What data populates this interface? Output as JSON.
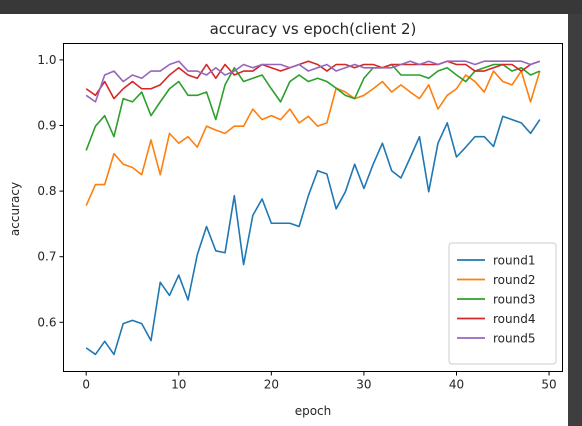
{
  "chart_data": {
    "type": "line",
    "title": "accuracy vs epoch(client 2)",
    "xlabel": "epoch",
    "ylabel": "accuracy",
    "xlim": [
      -2.45,
      51.45
    ],
    "ylim": [
      0.525,
      1.025
    ],
    "xticks": [
      0,
      10,
      20,
      30,
      40,
      50
    ],
    "yticks": [
      0.6,
      0.7,
      0.8,
      0.9,
      1.0
    ],
    "xtick_labels": [
      "0",
      "10",
      "20",
      "30",
      "40",
      "50"
    ],
    "ytick_labels": [
      "0.6",
      "0.7",
      "0.8",
      "0.9",
      "1.0"
    ],
    "grid": false,
    "legend_position": "lower-right",
    "x": [
      0,
      1,
      2,
      3,
      4,
      5,
      6,
      7,
      8,
      9,
      10,
      11,
      12,
      13,
      14,
      15,
      16,
      17,
      18,
      19,
      20,
      21,
      22,
      23,
      24,
      25,
      26,
      27,
      28,
      29,
      30,
      31,
      32,
      33,
      34,
      35,
      36,
      37,
      38,
      39,
      40,
      41,
      42,
      43,
      44,
      45,
      46,
      47,
      48,
      49
    ],
    "series": [
      {
        "name": "round1",
        "color": "#1f77b4",
        "values": [
          0.561,
          0.551,
          0.571,
          0.551,
          0.598,
          0.603,
          0.598,
          0.572,
          0.661,
          0.641,
          0.672,
          0.634,
          0.703,
          0.746,
          0.709,
          0.706,
          0.793,
          0.688,
          0.763,
          0.788,
          0.751,
          0.751,
          0.751,
          0.746,
          0.793,
          0.831,
          0.826,
          0.773,
          0.799,
          0.841,
          0.804,
          0.841,
          0.873,
          0.831,
          0.82,
          0.851,
          0.883,
          0.799,
          0.873,
          0.904,
          0.852,
          0.867,
          0.883,
          0.883,
          0.868,
          0.914,
          0.909,
          0.904,
          0.888,
          0.909
        ]
      },
      {
        "name": "round2",
        "color": "#ff7f0e",
        "values": [
          0.778,
          0.81,
          0.81,
          0.857,
          0.841,
          0.836,
          0.825,
          0.878,
          0.825,
          0.888,
          0.873,
          0.883,
          0.867,
          0.899,
          0.893,
          0.888,
          0.899,
          0.899,
          0.925,
          0.909,
          0.915,
          0.909,
          0.925,
          0.904,
          0.914,
          0.899,
          0.904,
          0.957,
          0.951,
          0.941,
          0.946,
          0.956,
          0.967,
          0.951,
          0.962,
          0.951,
          0.941,
          0.962,
          0.925,
          0.946,
          0.956,
          0.977,
          0.967,
          0.951,
          0.983,
          0.967,
          0.962,
          0.983,
          0.936,
          0.983
        ]
      },
      {
        "name": "round3",
        "color": "#2ca02c",
        "values": [
          0.862,
          0.899,
          0.915,
          0.883,
          0.941,
          0.936,
          0.951,
          0.915,
          0.936,
          0.956,
          0.967,
          0.946,
          0.946,
          0.951,
          0.909,
          0.962,
          0.988,
          0.967,
          0.972,
          0.977,
          0.956,
          0.936,
          0.967,
          0.977,
          0.967,
          0.972,
          0.967,
          0.957,
          0.946,
          0.941,
          0.972,
          0.988,
          0.988,
          0.993,
          0.977,
          0.977,
          0.977,
          0.972,
          0.983,
          0.988,
          0.977,
          0.967,
          0.983,
          0.988,
          0.993,
          0.993,
          0.983,
          0.988,
          0.977,
          0.983
        ]
      },
      {
        "name": "round4",
        "color": "#d62728",
        "values": [
          0.956,
          0.946,
          0.967,
          0.941,
          0.956,
          0.967,
          0.956,
          0.956,
          0.962,
          0.977,
          0.988,
          0.977,
          0.972,
          0.993,
          0.972,
          0.993,
          0.977,
          0.983,
          0.983,
          0.993,
          0.988,
          0.983,
          0.988,
          0.993,
          0.998,
          0.993,
          0.983,
          0.993,
          0.993,
          0.988,
          0.993,
          0.993,
          0.988,
          0.993,
          0.993,
          0.993,
          0.993,
          0.993,
          0.993,
          0.998,
          0.993,
          0.993,
          0.983,
          0.983,
          0.988,
          0.993,
          0.993,
          0.983,
          0.993,
          0.998
        ]
      },
      {
        "name": "round5",
        "color": "#9467bd",
        "values": [
          0.946,
          0.936,
          0.977,
          0.983,
          0.967,
          0.977,
          0.972,
          0.983,
          0.983,
          0.993,
          0.998,
          0.983,
          0.983,
          0.977,
          0.988,
          0.977,
          0.983,
          0.993,
          0.988,
          0.993,
          0.993,
          0.993,
          0.988,
          0.993,
          0.983,
          0.988,
          0.993,
          0.983,
          0.988,
          0.993,
          0.988,
          0.988,
          0.988,
          0.988,
          0.993,
          0.998,
          0.993,
          0.998,
          0.993,
          0.998,
          0.998,
          0.998,
          0.993,
          0.998,
          0.998,
          0.998,
          0.998,
          0.998,
          0.993,
          0.998
        ]
      }
    ]
  }
}
